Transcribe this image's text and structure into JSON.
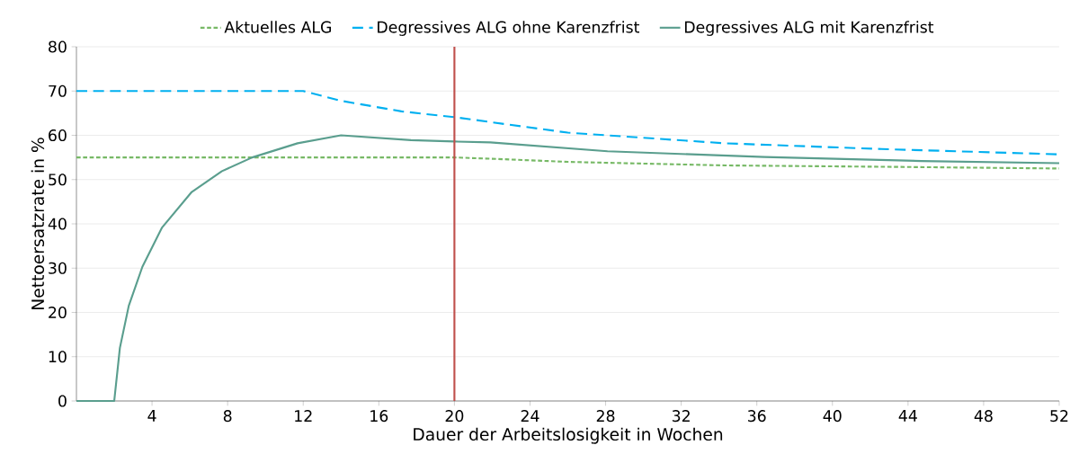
{
  "chart_data": {
    "type": "line",
    "xlabel": "Dauer der Arbeitslosigkeit in Wochen",
    "ylabel": "Nettoersatzrate in %",
    "xlim": [
      0,
      52
    ],
    "xticks": [
      4,
      8,
      12,
      16,
      20,
      24,
      28,
      32,
      36,
      40,
      44,
      48,
      52
    ],
    "ylim": [
      0,
      80
    ],
    "yticks": [
      0,
      10,
      20,
      30,
      40,
      50,
      60,
      70,
      80
    ],
    "grid": "y",
    "legend": "top",
    "marker": "none",
    "ref_lines": [
      {
        "axis": "x",
        "value": 20,
        "color": "#c0504d",
        "line_style": "solid"
      }
    ],
    "series": [
      {
        "name": "Aktuelles ALG",
        "color": "#77b966",
        "line_style": "dotted",
        "x": [
          0,
          20,
          22,
          26,
          34.3,
          42.6,
          52
        ],
        "values": [
          55,
          55,
          54.7,
          54.0,
          53.2,
          52.9,
          52.5
        ]
      },
      {
        "name": "Degressives ALG ohne Karenzfrist",
        "color": "#00b0f0",
        "line_style": "dashed",
        "x": [
          0,
          12,
          14,
          17.2,
          20,
          26,
          34.3,
          42.6,
          52
        ],
        "values": [
          70,
          70,
          67.8,
          65.4,
          64.1,
          60.6,
          58.2,
          56.9,
          55.7
        ]
      },
      {
        "name": "Degressives ALG mit Karenzfrist",
        "color": "#5a9e8e",
        "line_style": "solid",
        "x": [
          0,
          2,
          2.3,
          2.77,
          3.49,
          4.52,
          6.1,
          7.7,
          9.3,
          11.7,
          14,
          17.7,
          20,
          21.9,
          28.1,
          36.4,
          44.7,
          52
        ],
        "values": [
          0,
          0,
          12.0,
          21.5,
          30.3,
          39.1,
          47.2,
          51.9,
          55.0,
          58.2,
          60,
          58.9,
          58.6,
          58.4,
          56.4,
          55.1,
          54.2,
          53.7
        ]
      }
    ]
  }
}
